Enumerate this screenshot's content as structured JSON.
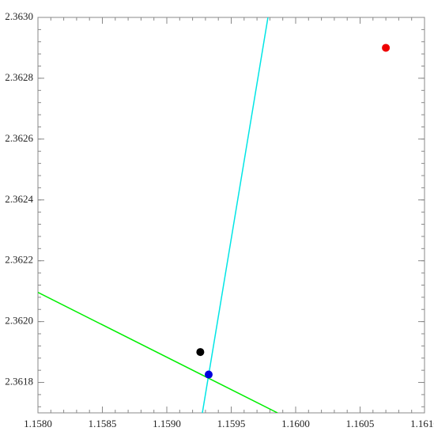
{
  "chart_data": {
    "type": "scatter",
    "xlim": [
      1.158,
      1.161
    ],
    "ylim": [
      2.3617,
      2.363
    ],
    "xticks": [
      {
        "value": 1.158,
        "label": "1.1580"
      },
      1.1585,
      {
        "value": 1.159,
        "label": "1.1590"
      },
      1.1595,
      {
        "value": 1.16,
        "label": "1.1600"
      },
      1.1605,
      {
        "value": 1.161,
        "label": "1.1610"
      }
    ],
    "yticks": [
      2.3618,
      {
        "value": 2.362,
        "label": "2.3620"
      },
      2.3622,
      2.3624,
      2.3626,
      2.3628,
      {
        "value": 2.363,
        "label": "2.3630"
      }
    ],
    "series": [
      {
        "mode": "line",
        "color": "#00e5e5",
        "x": [
          1.159276,
          1.159785
        ],
        "y": [
          2.3617,
          2.363
        ]
      },
      {
        "mode": "line",
        "color": "#00ee00",
        "x": [
          1.158,
          1.159859
        ],
        "y": [
          2.362096,
          2.3617
        ]
      },
      {
        "mode": "marker",
        "color": "#ee0000",
        "x": [
          1.1607
        ],
        "y": [
          2.3629
        ]
      },
      {
        "mode": "marker",
        "color": "#000000",
        "x": [
          1.15926
        ],
        "y": [
          2.3619
        ]
      },
      {
        "mode": "marker",
        "color": "#0000dd",
        "x": [
          1.159325
        ],
        "y": [
          2.361826
        ]
      }
    ]
  }
}
